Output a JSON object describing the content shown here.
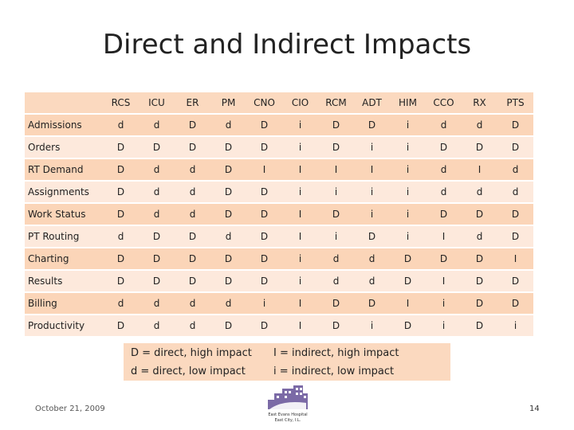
{
  "title": "Direct and Indirect Impacts",
  "table": {
    "columns": [
      "RCS",
      "ICU",
      "ER",
      "PM",
      "CNO",
      "CIO",
      "RCM",
      "ADT",
      "HIM",
      "CCO",
      "RX",
      "PTS"
    ],
    "rows": [
      {
        "label": "Admissions",
        "cells": [
          "d",
          "d",
          "D",
          "d",
          "D",
          "i",
          "D",
          "D",
          "i",
          "d",
          "d",
          "D"
        ]
      },
      {
        "label": "Orders",
        "cells": [
          "D",
          "D",
          "D",
          "D",
          "D",
          "i",
          "D",
          "i",
          "i",
          "D",
          "D",
          "D"
        ]
      },
      {
        "label": "RT Demand",
        "cells": [
          "D",
          "d",
          "d",
          "D",
          "I",
          "I",
          "I",
          "I",
          "i",
          "d",
          "I",
          "d"
        ]
      },
      {
        "label": "Assignments",
        "cells": [
          "D",
          "d",
          "d",
          "D",
          "D",
          "i",
          "i",
          "i",
          "i",
          "d",
          "d",
          "d"
        ]
      },
      {
        "label": "Work Status",
        "cells": [
          "D",
          "d",
          "d",
          "D",
          "D",
          "I",
          "D",
          "i",
          "i",
          "D",
          "D",
          "D"
        ]
      },
      {
        "label": "PT Routing",
        "cells": [
          "d",
          "D",
          "D",
          "d",
          "D",
          "I",
          "i",
          "D",
          "i",
          "I",
          "d",
          "D"
        ]
      },
      {
        "label": "Charting",
        "cells": [
          "D",
          "D",
          "D",
          "D",
          "D",
          "i",
          "d",
          "d",
          "D",
          "D",
          "D",
          "I"
        ]
      },
      {
        "label": "Results",
        "cells": [
          "D",
          "D",
          "D",
          "D",
          "D",
          "i",
          "d",
          "d",
          "D",
          "I",
          "D",
          "D"
        ]
      },
      {
        "label": "Billing",
        "cells": [
          "d",
          "d",
          "d",
          "d",
          "i",
          "I",
          "D",
          "D",
          "I",
          "i",
          "D",
          "D"
        ]
      },
      {
        "label": "Productivity",
        "cells": [
          "D",
          "d",
          "d",
          "D",
          "D",
          "I",
          "D",
          "i",
          "D",
          "i",
          "D",
          "i"
        ]
      }
    ]
  },
  "legend": {
    "direct_high": "D = direct, high impact",
    "direct_low": "d = direct, low impact",
    "indirect_high": "I = indirect, high impact",
    "indirect_low": "i = indirect, low impact"
  },
  "footer": {
    "date": "October 21, 2009",
    "page_number": "14",
    "logo_line1": "East Evans Hospital",
    "logo_line2": "East City, I.L."
  },
  "colors": {
    "header_band": "#fbd9bf",
    "row_light": "#fde9dc",
    "row_dark": "#fbd5b8",
    "logo": "#7b6aa6"
  }
}
